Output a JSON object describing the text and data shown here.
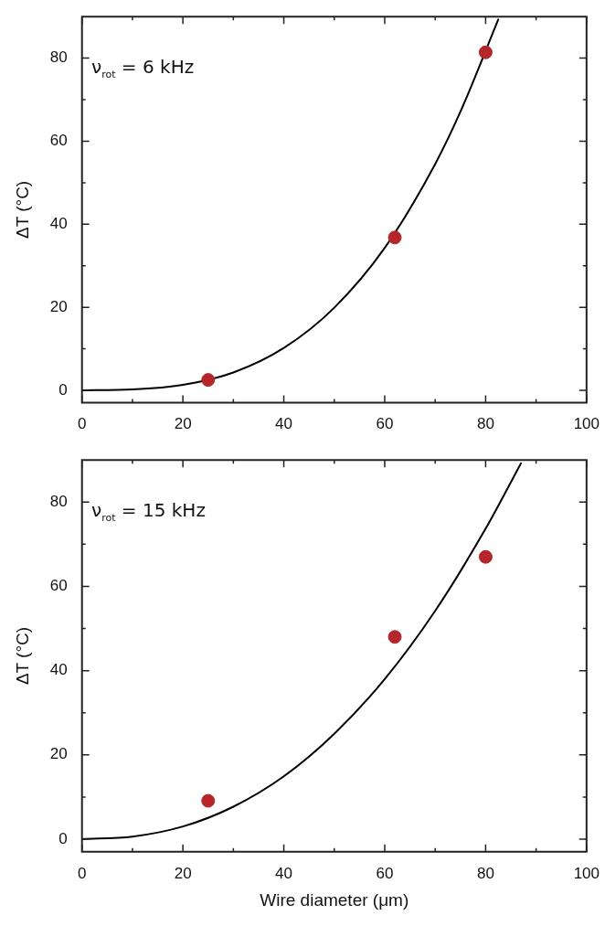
{
  "chart_data": [
    {
      "type": "scatter",
      "ylabel": "ΔT (°C)",
      "annotations": [
        "ν$_{rot}$ = 6 kHz"
      ],
      "xlim": [
        0,
        100
      ],
      "ylim": [
        -3,
        90
      ],
      "xticks": [
        0,
        {
          "value": 10,
          "label": null
        },
        20,
        {
          "value": 30,
          "label": null
        },
        40,
        {
          "value": 50,
          "label": null
        },
        60,
        {
          "value": 70,
          "label": null
        },
        80,
        {
          "value": 90,
          "label": null
        },
        100
      ],
      "yticks": [
        0,
        {
          "value": 10,
          "label": null
        },
        20,
        {
          "value": 30,
          "label": null
        },
        40,
        {
          "value": 50,
          "label": null
        },
        60,
        {
          "value": 70,
          "label": null
        },
        80
      ],
      "grid": false,
      "legend": false,
      "series": [
        {
          "type": "line",
          "color": "#000000",
          "marker": "none",
          "line_style": "solid",
          "x": [
            0,
            10,
            20,
            30,
            40,
            50,
            60,
            70,
            75,
            82.5
          ],
          "values": [
            0,
            0.2,
            1.3,
            4.3,
            10.2,
            19.9,
            34.3,
            54.5,
            67.1,
            89.3
          ]
        },
        {
          "type": "scatter",
          "color": "#b5262a",
          "marker": "circle",
          "x": [
            25,
            62,
            80
          ],
          "values": [
            2.5,
            36.8,
            81.4
          ]
        }
      ]
    },
    {
      "type": "scatter",
      "ylabel": "ΔT (°C)",
      "xlabel": "Wire diameter (μm)",
      "annotations": [
        "ν$_{rot}$ = 15 kHz"
      ],
      "xlim": [
        0,
        100
      ],
      "ylim": [
        -3,
        90
      ],
      "xticks": [
        0,
        {
          "value": 10,
          "label": null
        },
        20,
        {
          "value": 30,
          "label": null
        },
        40,
        {
          "value": 50,
          "label": null
        },
        60,
        {
          "value": 70,
          "label": null
        },
        80,
        {
          "value": 90,
          "label": null
        },
        100
      ],
      "yticks": [
        0,
        {
          "value": 10,
          "label": null
        },
        20,
        {
          "value": 30,
          "label": null
        },
        40,
        {
          "value": 50,
          "label": null
        },
        60,
        {
          "value": 70,
          "label": null
        },
        80
      ],
      "grid": false,
      "legend": false,
      "series": [
        {
          "type": "line",
          "color": "#000000",
          "marker": "none",
          "line_style": "solid",
          "x": [
            0,
            10,
            20,
            30,
            40,
            50,
            60,
            70,
            80,
            87
          ],
          "values": [
            0,
            0.6,
            3.0,
            7.7,
            14.9,
            25.0,
            38.0,
            54.2,
            73.7,
            89.2
          ]
        },
        {
          "type": "scatter",
          "color": "#b5262a",
          "marker": "circle",
          "x": [
            25,
            62,
            80
          ],
          "values": [
            9.1,
            48.0,
            67.0
          ]
        }
      ]
    }
  ]
}
